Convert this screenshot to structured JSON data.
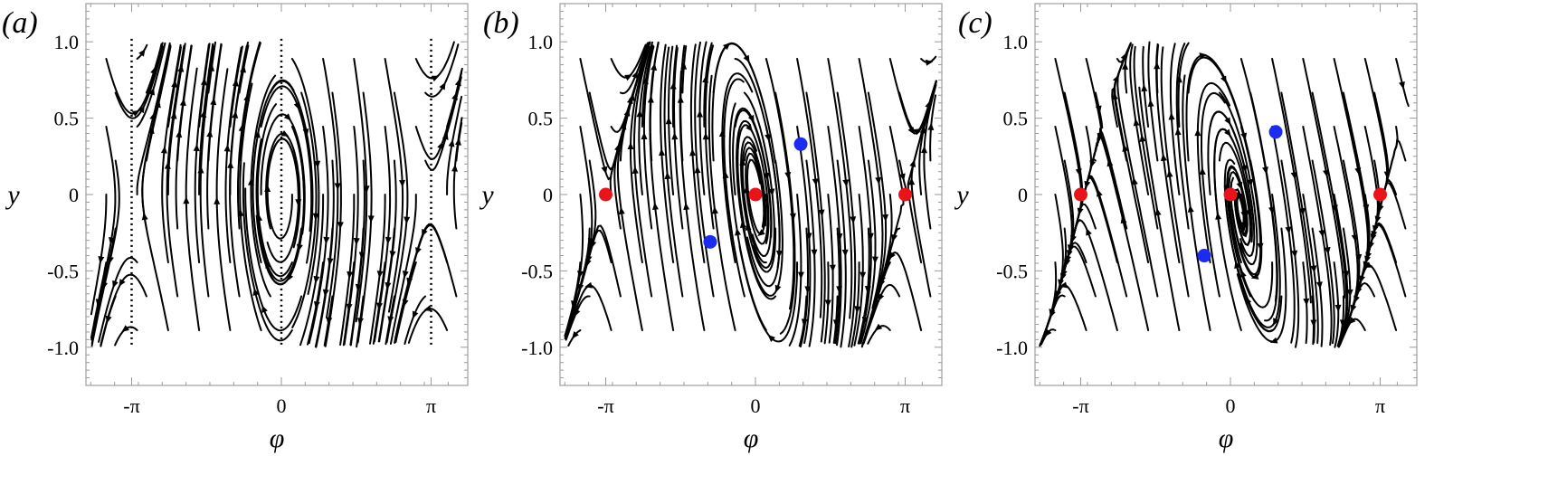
{
  "panels": [
    {
      "label": "(a)",
      "x_axis_label": "φ",
      "y_axis_label": "y",
      "y_ticks": [
        "1.0",
        "0.5",
        "0",
        "-0.5",
        "-1.0"
      ],
      "x_ticks": [
        "-π",
        "0",
        "π"
      ],
      "field": "conservative",
      "separatrices_at_phi": [
        "-π",
        "0",
        "π"
      ],
      "stable_points": [],
      "unstable_points": []
    },
    {
      "label": "(b)",
      "x_axis_label": "φ",
      "y_axis_label": "y",
      "y_ticks": [
        "1.0",
        "0.5",
        "0",
        "-0.5",
        "-1.0"
      ],
      "x_ticks": [
        "-π",
        "0",
        "π"
      ],
      "field": "damped-driven",
      "stable_points": [
        [
          -3.1416,
          0
        ],
        [
          0,
          0
        ],
        [
          3.1416,
          0
        ]
      ],
      "unstable_points": [
        [
          -0.95,
          -0.31
        ],
        [
          0.95,
          0.33
        ]
      ]
    },
    {
      "label": "(c)",
      "x_axis_label": "φ",
      "y_axis_label": "y",
      "y_ticks": [
        "1.0",
        "0.5",
        "0",
        "-0.5",
        "-1.0"
      ],
      "x_ticks": [
        "-π",
        "0",
        "π"
      ],
      "field": "damped-driven-strong",
      "stable_points": [
        [
          -3.1416,
          0
        ],
        [
          0,
          0
        ],
        [
          3.1416,
          0
        ]
      ],
      "unstable_points": [
        [
          -0.55,
          -0.4
        ],
        [
          0.95,
          0.41
        ]
      ]
    }
  ],
  "colors": {
    "stable_point": "#e8141a",
    "unstable_point": "#1b2cf0",
    "stream": "#000000"
  }
}
